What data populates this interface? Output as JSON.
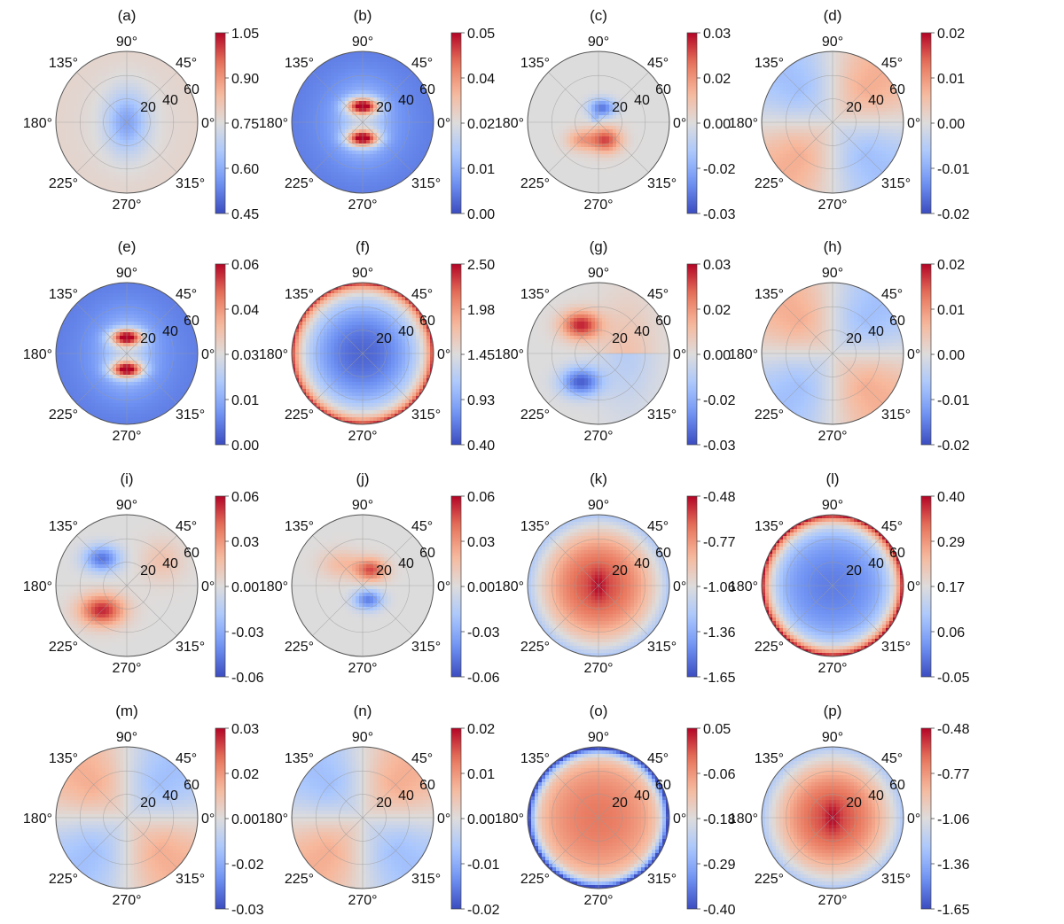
{
  "figure": {
    "panel_labels": [
      "(a)",
      "(b)",
      "(c)",
      "(d)",
      "(e)",
      "(f)",
      "(g)",
      "(h)",
      "(i)",
      "(j)",
      "(k)",
      "(l)",
      "(m)",
      "(n)",
      "(o)",
      "(p)"
    ],
    "angle_tick_labels": [
      "0°",
      "45°",
      "90°",
      "135°",
      "180°",
      "225°",
      "270°",
      "315°"
    ],
    "radial_tick_labels": [
      "20",
      "40",
      "60"
    ],
    "colormap": [
      "#3b4cc0",
      "#6f92f3",
      "#aac7fd",
      "#dddcdc",
      "#f7b89c",
      "#e7745b",
      "#b40426"
    ]
  },
  "chart_data": [
    {
      "panel": "(a)",
      "type": "heatmap",
      "projection": "polar",
      "pattern": "center_low",
      "colorbar_ticks": [
        "1.05",
        "0.90",
        "0.75",
        "0.60",
        "0.45"
      ],
      "colorbar_range": [
        0.45,
        1.05
      ]
    },
    {
      "panel": "(b)",
      "type": "heatmap",
      "projection": "polar",
      "pattern": "ring_blue_with_red_lobes",
      "colorbar_ticks": [
        "0.05",
        "0.04",
        "0.02",
        "0.01",
        "0.00"
      ],
      "colorbar_range": [
        0.0,
        0.05
      ]
    },
    {
      "panel": "(c)",
      "type": "heatmap",
      "projection": "polar",
      "pattern": "antisymmetric_small_lobes",
      "colorbar_ticks": [
        "0.03",
        "0.02",
        "0.00",
        "-0.02",
        "-0.03"
      ],
      "colorbar_range": [
        -0.03,
        0.03
      ]
    },
    {
      "panel": "(d)",
      "type": "heatmap",
      "projection": "polar",
      "pattern": "quadrants_pos_q1_q3",
      "colorbar_ticks": [
        "0.02",
        "0.01",
        "0.00",
        "-0.01",
        "-0.02"
      ],
      "colorbar_range": [
        -0.02,
        0.02
      ]
    },
    {
      "panel": "(e)",
      "type": "heatmap",
      "projection": "polar",
      "pattern": "ring_blue_with_red_lobes",
      "colorbar_ticks": [
        "0.06",
        "0.04",
        "0.03",
        "0.01",
        "0.00"
      ],
      "colorbar_range": [
        0.0,
        0.06
      ]
    },
    {
      "panel": "(f)",
      "type": "heatmap",
      "projection": "polar",
      "pattern": "radial_increase",
      "colorbar_ticks": [
        "2.50",
        "1.98",
        "1.45",
        "0.93",
        "0.40"
      ],
      "colorbar_range": [
        0.4,
        2.5
      ]
    },
    {
      "panel": "(g)",
      "type": "heatmap",
      "projection": "polar",
      "pattern": "top_red_bottom_blue",
      "colorbar_ticks": [
        "0.03",
        "0.02",
        "0.00",
        "-0.02",
        "-0.03"
      ],
      "colorbar_range": [
        -0.03,
        0.03
      ]
    },
    {
      "panel": "(h)",
      "type": "heatmap",
      "projection": "polar",
      "pattern": "quadrants_pos_q2_q4",
      "colorbar_ticks": [
        "0.02",
        "0.01",
        "0.00",
        "-0.01",
        "-0.02"
      ],
      "colorbar_range": [
        -0.02,
        0.02
      ]
    },
    {
      "panel": "(i)",
      "type": "heatmap",
      "projection": "polar",
      "pattern": "top_blue_bottom_red",
      "colorbar_ticks": [
        "0.06",
        "0.03",
        "0.00",
        "-0.03",
        "-0.06"
      ],
      "colorbar_range": [
        -0.06,
        0.06
      ]
    },
    {
      "panel": "(j)",
      "type": "heatmap",
      "projection": "polar",
      "pattern": "antisymmetric_small_lobes_upper_red",
      "colorbar_ticks": [
        "0.06",
        "0.03",
        "0.00",
        "-0.03",
        "-0.06"
      ],
      "colorbar_range": [
        -0.06,
        0.06
      ]
    },
    {
      "panel": "(k)",
      "type": "heatmap",
      "projection": "polar",
      "pattern": "center_high",
      "colorbar_ticks": [
        "-0.48",
        "-0.77",
        "-1.06",
        "-1.36",
        "-1.65"
      ],
      "colorbar_range": [
        -1.65,
        -0.48
      ]
    },
    {
      "panel": "(l)",
      "type": "heatmap",
      "projection": "polar",
      "pattern": "radial_increase_steep",
      "colorbar_ticks": [
        "0.40",
        "0.29",
        "0.17",
        "0.06",
        "-0.05"
      ],
      "colorbar_range": [
        -0.05,
        0.4
      ]
    },
    {
      "panel": "(m)",
      "type": "heatmap",
      "projection": "polar",
      "pattern": "quadrants_pos_q2_q4",
      "colorbar_ticks": [
        "0.03",
        "0.02",
        "0.00",
        "-0.02",
        "-0.03"
      ],
      "colorbar_range": [
        -0.03,
        0.03
      ]
    },
    {
      "panel": "(n)",
      "type": "heatmap",
      "projection": "polar",
      "pattern": "quadrants_pos_q1_q3",
      "colorbar_ticks": [
        "0.02",
        "0.01",
        "0.00",
        "-0.01",
        "-0.02"
      ],
      "colorbar_range": [
        -0.02,
        0.02
      ]
    },
    {
      "panel": "(o)",
      "type": "heatmap",
      "projection": "polar",
      "pattern": "center_high_edge_blue",
      "colorbar_ticks": [
        "0.05",
        "-0.06",
        "-0.18",
        "-0.29",
        "-0.40"
      ],
      "colorbar_range": [
        -0.4,
        0.05
      ]
    },
    {
      "panel": "(p)",
      "type": "heatmap",
      "projection": "polar",
      "pattern": "center_high",
      "colorbar_ticks": [
        "-0.48",
        "-0.77",
        "-1.06",
        "-1.36",
        "-1.65"
      ],
      "colorbar_range": [
        -1.65,
        -0.48
      ]
    }
  ]
}
